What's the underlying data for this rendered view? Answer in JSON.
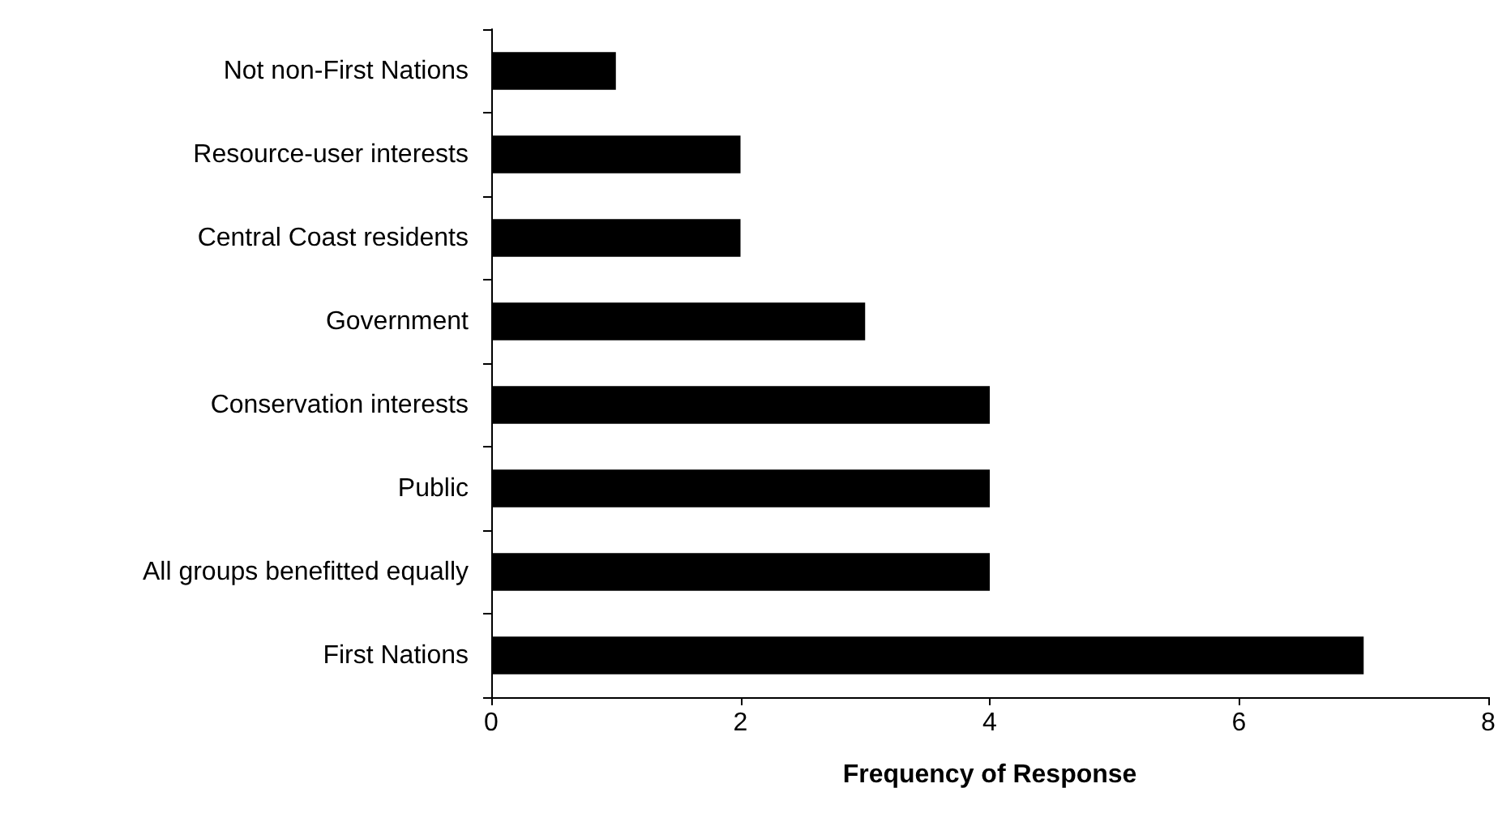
{
  "chart_data": {
    "type": "bar",
    "orientation": "horizontal",
    "xlabel": "Frequency of Response",
    "categories": [
      "Not non-First Nations",
      "Resource-user interests",
      "Central Coast residents",
      "Government",
      "Conservation interests",
      "Public",
      "All groups benefitted equally",
      "First Nations"
    ],
    "values": [
      1,
      2,
      2,
      3,
      4,
      4,
      4,
      7
    ],
    "color": "#000000",
    "xlim": [
      0,
      8
    ],
    "xticks": [
      0,
      2,
      4,
      6,
      8
    ],
    "grid": false
  }
}
